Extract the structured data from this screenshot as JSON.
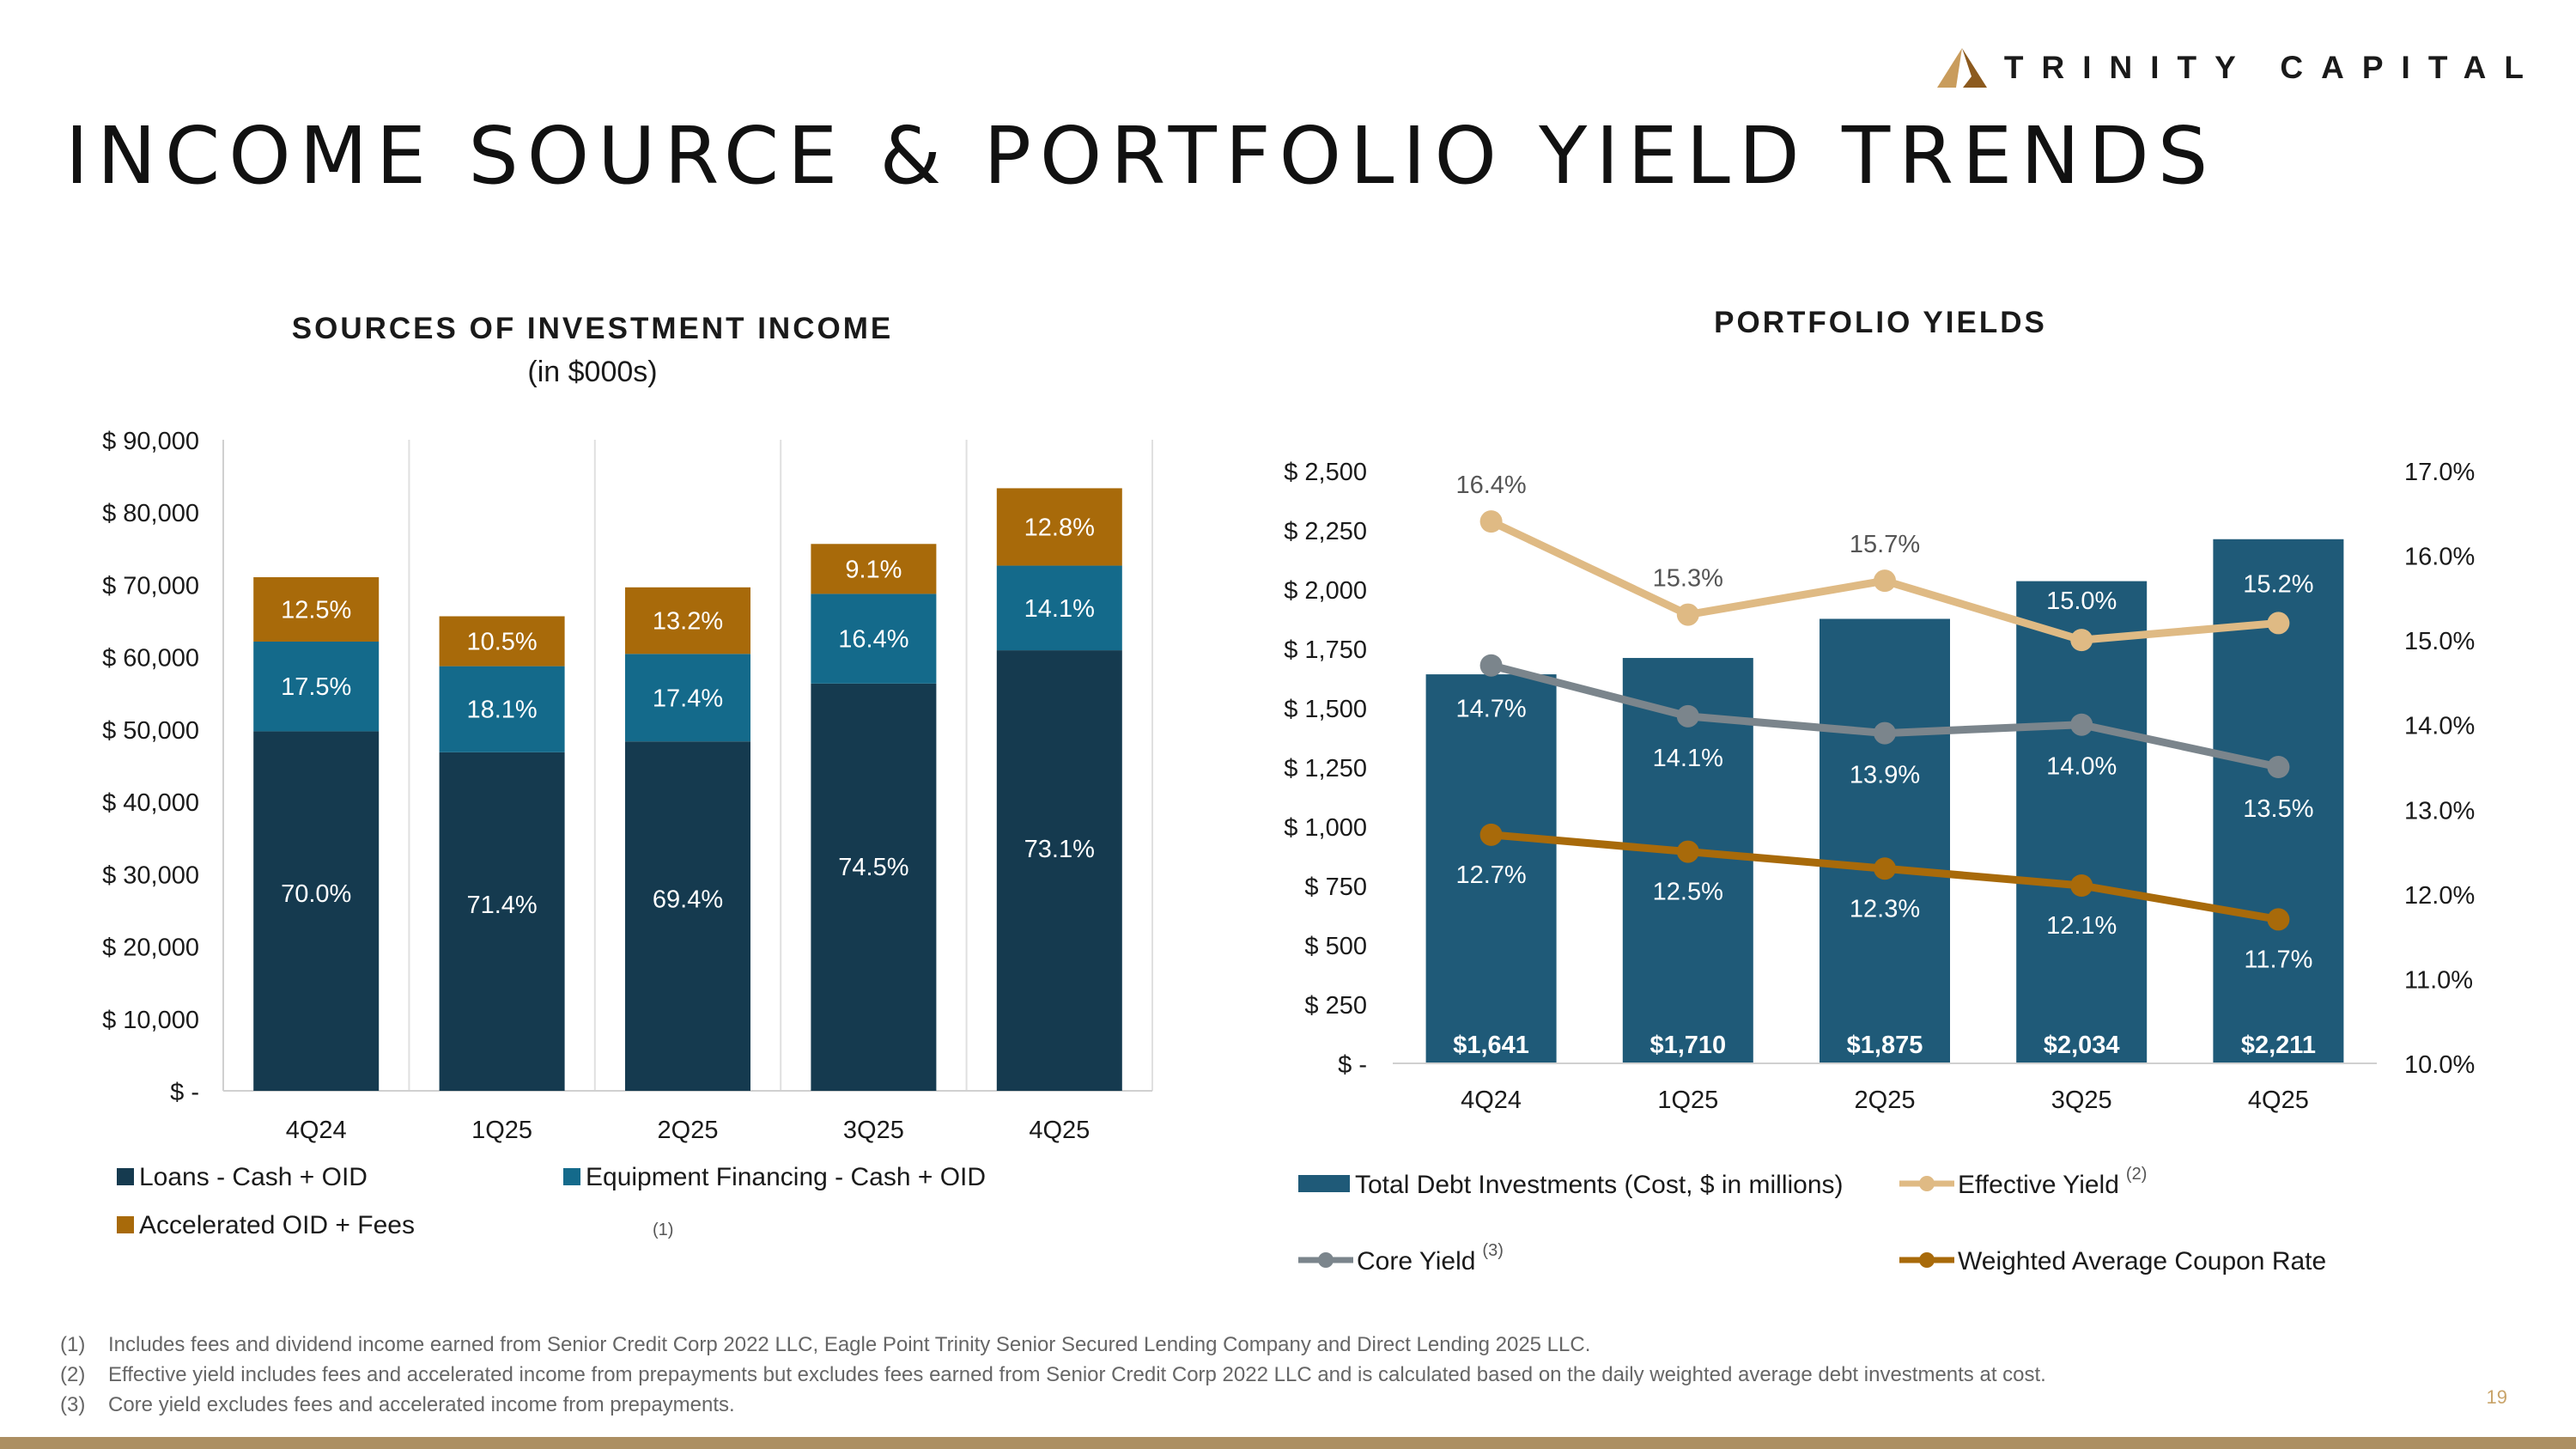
{
  "header": {
    "logo_text": "TRINITY CAPITAL",
    "page_title": "INCOME SOURCE & PORTFOLIO YIELD TRENDS"
  },
  "colors": {
    "loans": "#153a4f",
    "equipment": "#146a8b",
    "accelerated": "#a86a0a",
    "debt_bar": "#1f5a78",
    "effective_yield": "#dfba84",
    "core_yield": "#7b858c",
    "coupon": "#a86a0a",
    "logo_light": "#c99c5c",
    "logo_dark": "#8c5a1e"
  },
  "chart_data": [
    {
      "type": "bar",
      "stacked": true,
      "title": "SOURCES OF INVESTMENT INCOME",
      "subtitle": "(in $000s)",
      "categories": [
        "4Q24",
        "1Q25",
        "2Q25",
        "3Q25",
        "4Q25"
      ],
      "ylim": [
        0,
        90000
      ],
      "yticks": [
        0,
        10000,
        20000,
        30000,
        40000,
        50000,
        60000,
        70000,
        80000,
        90000
      ],
      "ytick_labels": [
        "$ -",
        "$ 10,000",
        "$ 20,000",
        "$ 30,000",
        "$ 40,000",
        "$ 50,000",
        "$ 60,000",
        "$ 70,000",
        "$ 80,000",
        "$ 90,000"
      ],
      "series": [
        {
          "name": "Loans - Cash + OID",
          "values": [
            49700,
            46800,
            48300,
            56300,
            60900
          ],
          "labels": [
            "70.0%",
            "71.4%",
            "69.4%",
            "74.5%",
            "73.1%"
          ]
        },
        {
          "name": "Equipment Financing - Cash + OID",
          "values": [
            12400,
            11900,
            12100,
            12400,
            11700
          ],
          "labels": [
            "17.5%",
            "18.1%",
            "17.4%",
            "16.4%",
            "14.1%"
          ]
        },
        {
          "name": "Accelerated OID + Fees",
          "values": [
            8900,
            6900,
            9200,
            6900,
            10700
          ],
          "labels": [
            "12.5%",
            "10.5%",
            "13.2%",
            "9.1%",
            "12.8%"
          ]
        }
      ],
      "legend": [
        "Loans - Cash + OID",
        "Equipment Financing - Cash + OID",
        "Accelerated OID + Fees"
      ],
      "legend_note": "(1)"
    },
    {
      "type": "bar",
      "title": "PORTFOLIO YIELDS",
      "categories": [
        "4Q24",
        "1Q25",
        "2Q25",
        "3Q25",
        "4Q25"
      ],
      "ylim": [
        0,
        2500
      ],
      "yticks": [
        0,
        250,
        500,
        750,
        1000,
        1250,
        1500,
        1750,
        2000,
        2250,
        2500
      ],
      "ytick_labels": [
        "$ -",
        "$ 250",
        "$ 500",
        "$ 750",
        "$ 1,000",
        "$ 1,250",
        "$ 1,500",
        "$ 1,750",
        "$ 2,000",
        "$ 2,250",
        "$ 2,500"
      ],
      "y2lim": [
        10.0,
        17.0
      ],
      "y2ticks": [
        10,
        11,
        12,
        13,
        14,
        15,
        16,
        17
      ],
      "y2tick_labels": [
        "10.0%",
        "11.0%",
        "12.0%",
        "13.0%",
        "14.0%",
        "15.0%",
        "16.0%",
        "17.0%"
      ],
      "bars": {
        "name": "Total Debt Investments (Cost, $ in millions)",
        "values": [
          1641,
          1710,
          1875,
          2034,
          2211
        ],
        "labels": [
          "$1,641",
          "$1,710",
          "$1,875",
          "$2,034",
          "$2,211"
        ]
      },
      "lines": [
        {
          "key": "effective",
          "name": "Effective Yield",
          "note": "(2)",
          "values": [
            16.4,
            15.3,
            15.7,
            15.0,
            15.2
          ],
          "labels": [
            "16.4%",
            "15.3%",
            "15.7%",
            "15.0%",
            "15.2%"
          ]
        },
        {
          "key": "core",
          "name": "Core Yield",
          "note": "(3)",
          "values": [
            14.7,
            14.1,
            13.9,
            14.0,
            13.5
          ],
          "labels": [
            "14.7%",
            "14.1%",
            "13.9%",
            "14.0%",
            "13.5%"
          ]
        },
        {
          "key": "coupon",
          "name": "Weighted Average Coupon Rate",
          "note": "",
          "values": [
            12.7,
            12.5,
            12.3,
            12.1,
            11.7
          ],
          "labels": [
            "12.7%",
            "12.5%",
            "12.3%",
            "12.1%",
            "11.7%"
          ]
        }
      ]
    }
  ],
  "footnotes": [
    {
      "num": "(1)",
      "text": "Includes fees and dividend income earned from Senior Credit Corp 2022 LLC, Eagle Point Trinity Senior Secured Lending Company and Direct Lending 2025 LLC."
    },
    {
      "num": "(2)",
      "text": "Effective yield includes fees and accelerated income from prepayments but excludes fees earned from Senior Credit Corp 2022 LLC and is calculated based on the daily weighted average debt investments at cost."
    },
    {
      "num": "(3)",
      "text": "Core yield excludes fees and accelerated income from prepayments."
    }
  ],
  "page_number": "19"
}
